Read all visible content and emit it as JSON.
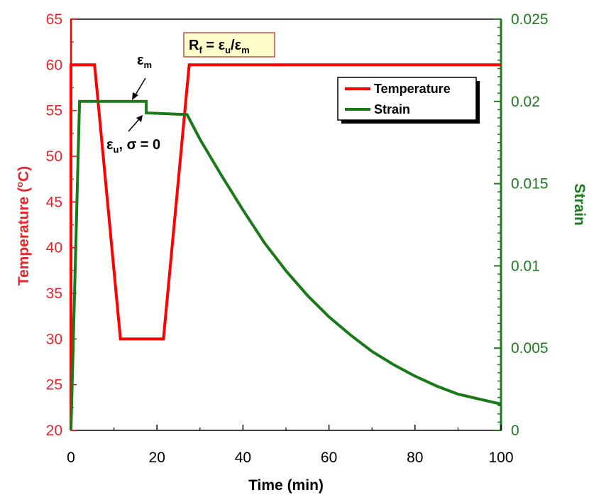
{
  "chart_data": {
    "type": "line",
    "x_axis": {
      "label": "Time (min)",
      "range": [
        0,
        100
      ],
      "ticks": [
        "0",
        "20",
        "40",
        "60",
        "80",
        "100"
      ]
    },
    "y_left": {
      "label_main": "Temperature (",
      "label_sup": "o",
      "label_end": "C)",
      "range": [
        20,
        65
      ],
      "ticks": [
        "20",
        "25",
        "30",
        "35",
        "40",
        "45",
        "50",
        "55",
        "60",
        "65"
      ],
      "color": "#e8262c"
    },
    "y_right": {
      "label": "Strain",
      "range": [
        0,
        0.025
      ],
      "ticks": [
        "0",
        "0.005",
        "0.01",
        "0.015",
        "0.02",
        "0.025"
      ],
      "color": "#1e7a1e"
    },
    "series": [
      {
        "name": "Temperature",
        "axis": "left",
        "color": "#ff0000",
        "x": [
          0,
          0,
          5.5,
          11.5,
          21.5,
          27.5,
          100
        ],
        "y": [
          20,
          60,
          60,
          30,
          30,
          60,
          60
        ]
      },
      {
        "name": "Strain",
        "axis": "right",
        "color": "#1a7a1a",
        "x": [
          0,
          2,
          17.5,
          17.5,
          27,
          30,
          35,
          40,
          45,
          50,
          55,
          60,
          65,
          70,
          75,
          80,
          85,
          90,
          95,
          100
        ],
        "y": [
          0,
          0.02,
          0.02,
          0.0193,
          0.0192,
          0.0177,
          0.0155,
          0.0134,
          0.0114,
          0.0097,
          0.0082,
          0.0069,
          0.0058,
          0.0048,
          0.004,
          0.0033,
          0.0027,
          0.0022,
          0.0019,
          0.0016
        ]
      }
    ],
    "legend": {
      "position": "top-right",
      "entries": [
        "Temperature",
        "Strain"
      ]
    },
    "annotations": {
      "ratio_box": {
        "main": "R",
        "sub": "f",
        "eq": " = ε",
        "sub2": "u",
        "slash": "/ε",
        "sub3": "m",
        "fill": "#fefcc8",
        "border": "#c0504d"
      },
      "eps_m": {
        "main": "ε",
        "sub": "m"
      },
      "eps_u": {
        "main": "ε",
        "sub": "u",
        "rest": ", σ = 0"
      }
    }
  }
}
